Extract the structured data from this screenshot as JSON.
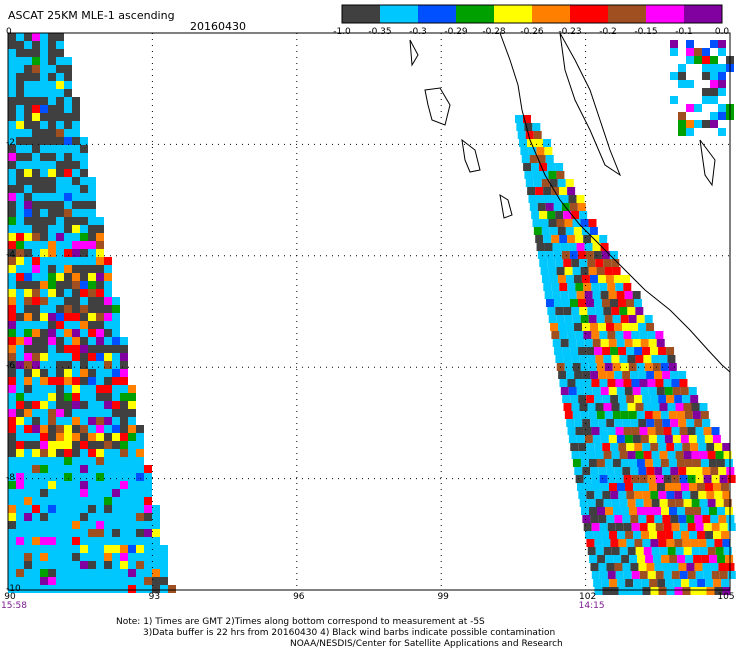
{
  "title": "ASCAT 25KM MLE-1 ascending",
  "date": "20160430",
  "colorbar": {
    "colors": [
      "#404040",
      "#00c8ff",
      "#0050ff",
      "#00a000",
      "#ffff00",
      "#ff8000",
      "#ff0000",
      "#a05020",
      "#ff00ff",
      "#8000a0"
    ],
    "labels": [
      "-1.0",
      "-0.35",
      "-0.3",
      "-0.29",
      "-0.28",
      "-0.26",
      "-0.23",
      "-0.2",
      "-0.15",
      "-0.1",
      "0.0"
    ]
  },
  "axes": {
    "x_ticks": [
      "90",
      "93",
      "96",
      "99",
      "102",
      "105"
    ],
    "y_ticks": [
      "0",
      "-2",
      "-4",
      "-6",
      "-8",
      "-10"
    ],
    "xlim": [
      90,
      105
    ],
    "ylim": [
      -10,
      0
    ]
  },
  "swath_times": [
    {
      "lon": 90,
      "time": "15:58"
    },
    {
      "lon": 102,
      "time": "14:15"
    }
  ],
  "notes": {
    "line1": "Note: 1) Times are GMT 2)Times along bottom correspond to measurement at -5S",
    "line2": "3)Data buffer is 22 hrs from 20160430 4) Black wind barbs indicate possible contamination",
    "line3": "NOAA/NESDIS/Center for Satellite Applications and Research"
  }
}
